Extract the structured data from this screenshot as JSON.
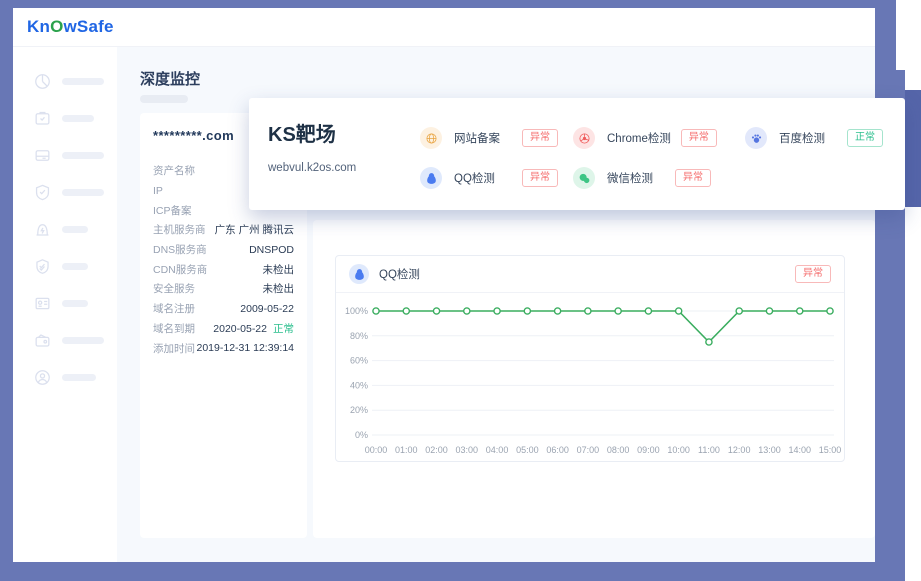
{
  "logo": {
    "pre": "Kn",
    "o": "O",
    "post": "wSafe"
  },
  "page_title": "深度监控",
  "sidebar": {
    "items": [
      {
        "icon": "dashboard-icon"
      },
      {
        "icon": "assets-box-icon"
      },
      {
        "icon": "server-icon"
      },
      {
        "icon": "shield-check-icon"
      },
      {
        "icon": "alarm-icon"
      },
      {
        "icon": "shield-double-check-icon"
      },
      {
        "icon": "id-card-icon"
      },
      {
        "icon": "wallet-icon"
      },
      {
        "icon": "user-icon"
      }
    ]
  },
  "asset_card": {
    "domain": "*********.com",
    "rows": [
      {
        "label": "资产名称",
        "value": ""
      },
      {
        "label": "IP",
        "value": ""
      },
      {
        "label": "ICP备案",
        "value": ""
      },
      {
        "label": "主机服务商",
        "value": "广东 广州 腾讯云"
      },
      {
        "label": "DNS服务商",
        "value": "DNSPOD"
      },
      {
        "label": "CDN服务商",
        "value": "未检出"
      },
      {
        "label": "安全服务",
        "value": "未检出"
      },
      {
        "label": "域名注册",
        "value": "2009-05-22"
      },
      {
        "label": "域名到期",
        "value": "2020-05-22",
        "badge": "正常"
      },
      {
        "label": "添加时间",
        "value": "2019-12-31  12:39:14"
      }
    ]
  },
  "overlay_card": {
    "title": "KS靶场",
    "domain": "webvul.k2os.com",
    "detections": [
      {
        "name": "网站备案",
        "status": "异常",
        "status_type": "error",
        "icon": "globe-icon"
      },
      {
        "name": "QQ检测",
        "status": "异常",
        "status_type": "error",
        "icon": "qq-icon"
      },
      {
        "name": "Chrome检测",
        "status": "异常",
        "status_type": "error",
        "icon": "chrome-icon"
      },
      {
        "name": "微信检测",
        "status": "异常",
        "status_type": "error",
        "icon": "wechat-icon"
      },
      {
        "name": "百度检测",
        "status": "正常",
        "status_type": "success",
        "icon": "baidu-icon"
      }
    ]
  },
  "chart_card": {
    "title": "QQ检测",
    "status": "异常",
    "icon": "qq-icon"
  },
  "chart_data": {
    "type": "line",
    "title": "QQ检测",
    "x": [
      "00:00",
      "01:00",
      "02:00",
      "03:00",
      "04:00",
      "05:00",
      "06:00",
      "07:00",
      "08:00",
      "09:00",
      "10:00",
      "11:00",
      "12:00",
      "13:00",
      "14:00",
      "15:00"
    ],
    "series": [
      {
        "name": "QQ检测",
        "values": [
          100,
          100,
          100,
          100,
          100,
          100,
          100,
          100,
          100,
          100,
          100,
          75,
          100,
          100,
          100,
          100
        ]
      }
    ],
    "ylim": [
      0,
      100
    ],
    "yticks": [
      0,
      20,
      40,
      60,
      80,
      100
    ],
    "ytick_labels": [
      "0%",
      "20%",
      "40%",
      "60%",
      "80%",
      "100%"
    ],
    "grid": true,
    "legend": "none",
    "line_color": "#3aad5f",
    "marker": "open-circle"
  },
  "colors": {
    "frame_blue": "#6877b5",
    "next_card_blue": "#5565a9",
    "brand_blue": "#2066e4",
    "brand_green": "#2ba24c",
    "error_red": "#f56c6c",
    "success_green": "#2bbf8e",
    "chart_green": "#3aad5f",
    "main_bg": "#f6f9fd"
  }
}
